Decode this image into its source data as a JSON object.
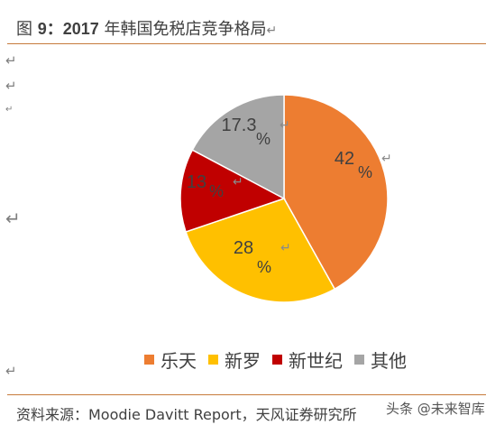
{
  "header": {
    "figure_label": "图",
    "figure_number": "9：2017",
    "title_rest": "年韩国免税店竞争格局"
  },
  "footer": {
    "source": "资料来源：Moodie Davitt Report，天风证券研究所",
    "watermark": "头条 @未来智库"
  },
  "chart_data": {
    "type": "pie",
    "title": "2017 年韩国免税店竞争格局",
    "unit": "%",
    "slices": [
      {
        "name": "乐天",
        "value": 42,
        "label": "42",
        "color": "#ed7d31"
      },
      {
        "name": "新罗",
        "value": 28,
        "label": "28",
        "color": "#ffc000"
      },
      {
        "name": "新世纪",
        "value": 13,
        "label": "13",
        "color": "#c00000"
      },
      {
        "name": "其他",
        "value": 17.3,
        "label": "17.3",
        "color": "#a5a5a5"
      }
    ],
    "legend_position": "bottom"
  }
}
